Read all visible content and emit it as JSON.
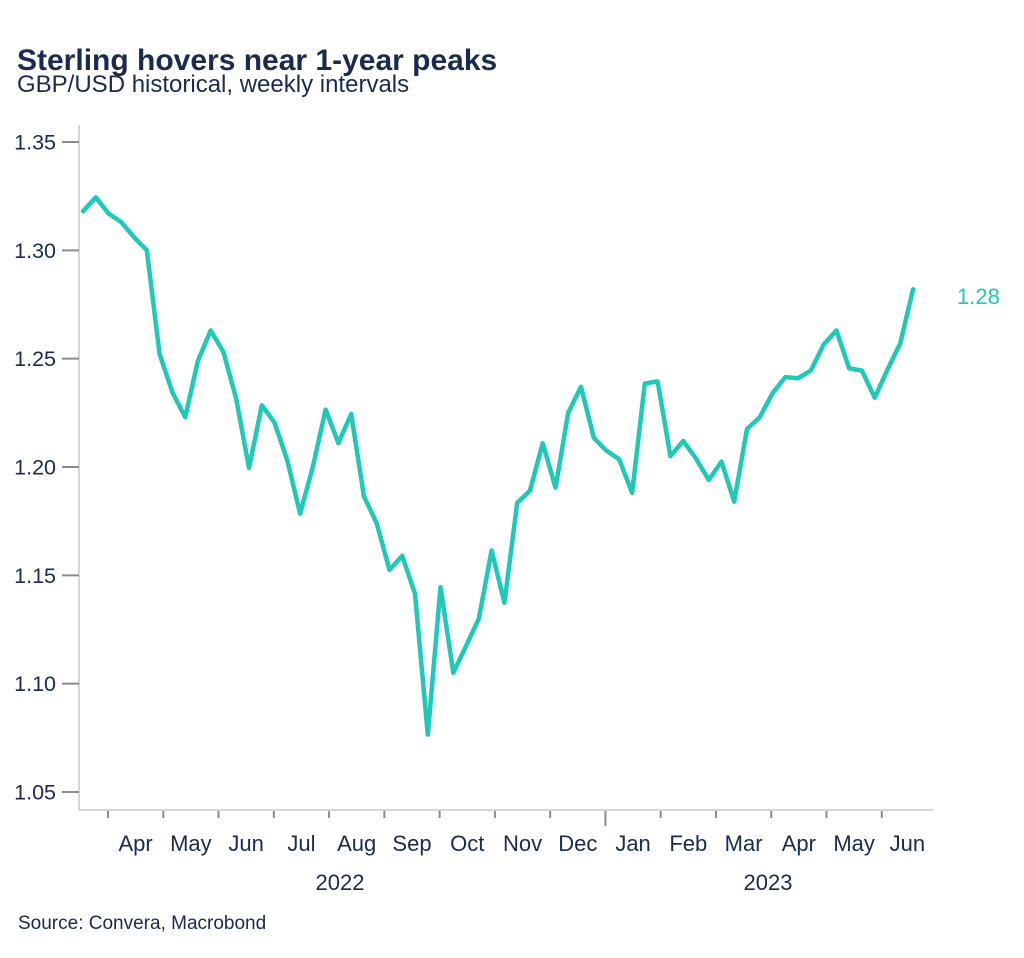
{
  "header": {
    "title": "Sterling hovers near 1-year peaks",
    "subtitle": "GBP/USD historical, weekly intervals"
  },
  "footer": {
    "source": "Source: Convera, Macrobond"
  },
  "colors": {
    "line": "#1ec9b7",
    "text_navy": "#1a2b4d",
    "axis_line": "#c9c9c9",
    "tick": "#8c8c8c"
  },
  "chart_data": {
    "type": "line",
    "title": "Sterling hovers near 1-year peaks",
    "subtitle": "GBP/USD historical, weekly intervals",
    "series_name": "GBP/USD",
    "interval": "weekly",
    "x_start": "2022-03-18",
    "x_end": "2023-06-16",
    "values": [
      1.318,
      1.3245,
      1.317,
      1.313,
      1.306,
      1.3,
      1.252,
      1.2345,
      1.223,
      1.249,
      1.263,
      1.253,
      1.2315,
      1.1995,
      1.2285,
      1.2205,
      1.203,
      1.1785,
      1.2,
      1.2265,
      1.211,
      1.2245,
      1.1865,
      1.174,
      1.1525,
      1.159,
      1.1415,
      1.0765,
      1.1445,
      1.105,
      1.1175,
      1.13,
      1.1615,
      1.1373,
      1.1835,
      1.189,
      1.211,
      1.1905,
      1.225,
      1.237,
      1.2135,
      1.2075,
      1.2035,
      1.188,
      1.2385,
      1.2395,
      1.205,
      1.212,
      1.204,
      1.194,
      1.2025,
      1.184,
      1.2175,
      1.223,
      1.234,
      1.2415,
      1.241,
      1.2445,
      1.2565,
      1.263,
      1.2455,
      1.2445,
      1.232,
      1.245,
      1.257,
      1.282
    ],
    "ylim": [
      1.04,
      1.356
    ],
    "y_ticks": [
      "1.35",
      "1.30",
      "1.25",
      "1.20",
      "1.15",
      "1.10",
      "1.05"
    ],
    "y_tick_values": [
      1.35,
      1.3,
      1.25,
      1.2,
      1.15,
      1.1,
      1.05
    ],
    "x_tick_months": [
      "Apr",
      "May",
      "Jun",
      "Jul",
      "Aug",
      "Sep",
      "Oct",
      "Nov",
      "Dec",
      "Jan",
      "Feb",
      "Mar",
      "Apr",
      "May",
      "Jun"
    ],
    "year_boundary_after_month_index": 9,
    "x_year_labels": [
      "2022",
      "2023"
    ],
    "end_value_label": "1.28",
    "line_color": "#1ec9b7",
    "grid": false,
    "legend": "none"
  }
}
